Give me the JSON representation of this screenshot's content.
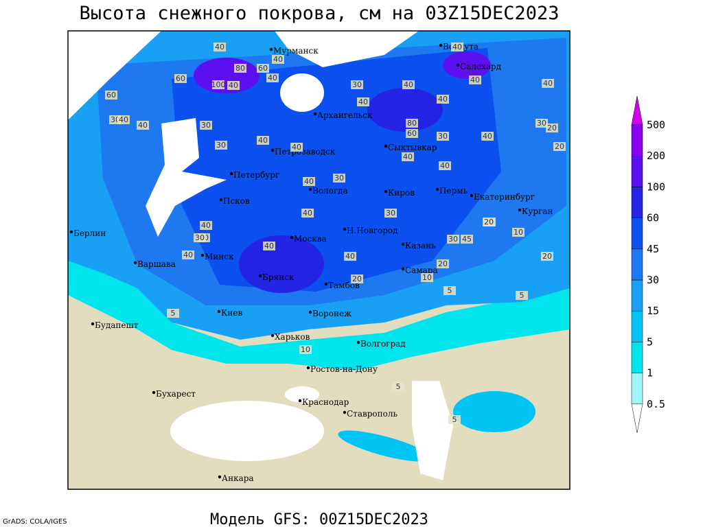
{
  "title": "Высота снежного покрова, см на 03Z15DEC2023",
  "footer": "Модель GFS: 00Z15DEC2023",
  "credit": "GrADS: COLA/IGES",
  "cities": [
    "Мурманск",
    "Воркута",
    "Салехард",
    "Архангельск",
    "Сыктывкар",
    "Петрозаводск",
    "Петербург",
    "Вологда",
    "Киров",
    "Пермь",
    "Екатеринбург",
    "Курган",
    "Псков",
    "Берлин",
    "Н.Новгород",
    "Москва",
    "Казань",
    "Минск",
    "Варшава",
    "Самара",
    "Брянск",
    "Тамбов",
    "Киев",
    "Воронеж",
    "Будапешт",
    "Харьков",
    "Волгоград",
    "Ростов-на-Дону",
    "Бухарест",
    "Краснодар",
    "Ставрополь",
    "Анкара"
  ],
  "contour_labels": [
    40,
    40,
    60,
    80,
    60,
    40,
    100,
    40,
    60,
    30,
    40,
    40,
    30,
    40,
    30,
    40,
    40,
    30,
    40,
    80,
    60,
    40,
    40,
    40,
    30,
    20,
    20,
    40,
    30,
    40,
    40,
    40,
    30,
    20,
    30,
    40,
    45,
    30,
    40,
    20,
    10,
    30,
    40,
    20,
    20,
    40,
    30,
    40,
    20,
    5,
    5,
    10,
    5,
    10,
    40,
    5,
    5
  ],
  "legend": {
    "levels": [
      0.5,
      1,
      5,
      15,
      30,
      45,
      60,
      100,
      200,
      500
    ],
    "colors": [
      "#ffffff",
      "#a0f4f8",
      "#00e4ec",
      "#00c4f4",
      "#18a0f4",
      "#1e78f0",
      "#0c50f0",
      "#2424e4",
      "#5c10f0",
      "#8c00f0",
      "#d000f0"
    ]
  }
}
